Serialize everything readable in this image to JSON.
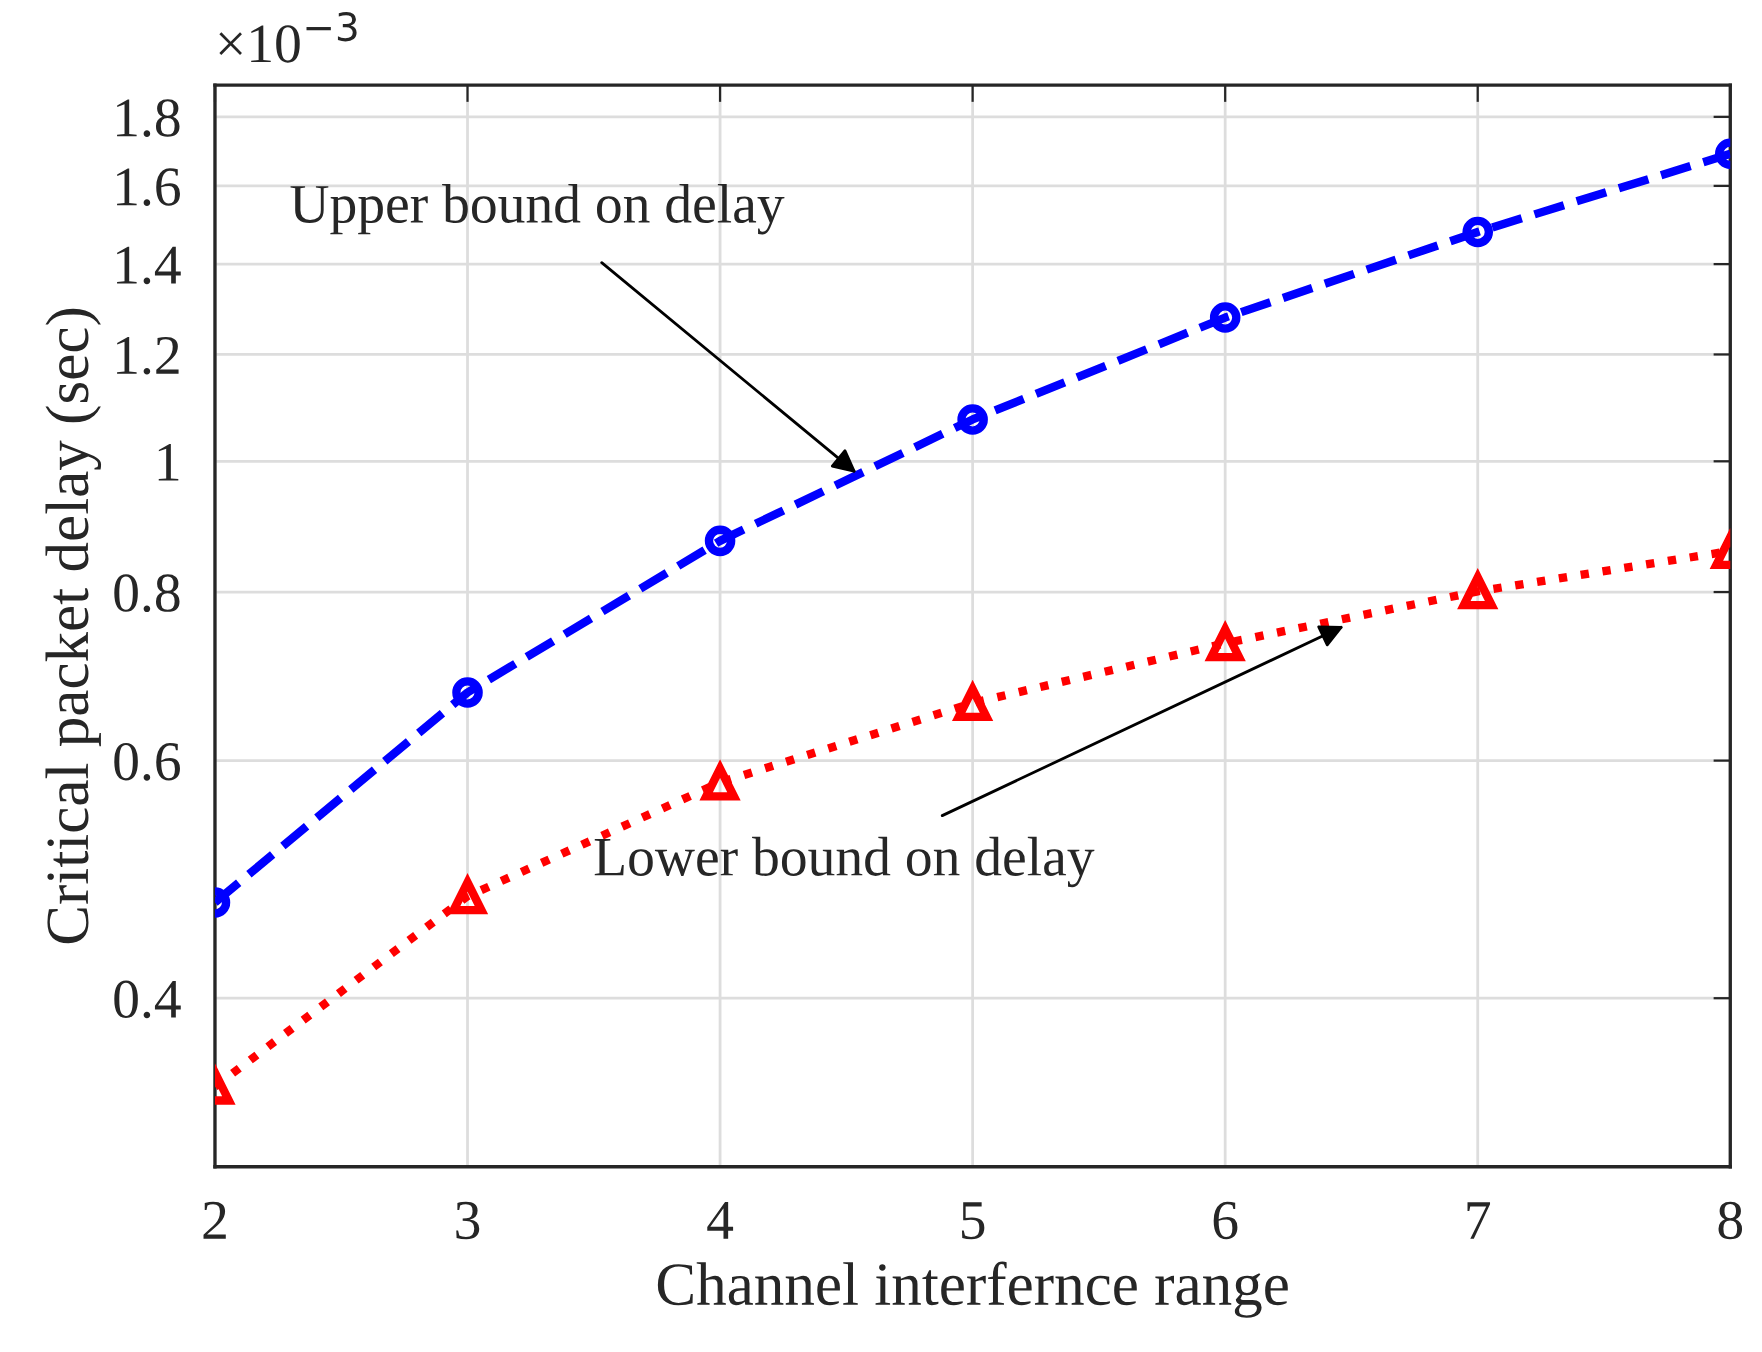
{
  "chart_data": {
    "type": "line",
    "xlabel": "Channel interfernce range",
    "ylabel": "Critical packet delay (sec)",
    "x": [
      2,
      3,
      4,
      5,
      6,
      7,
      8
    ],
    "series": [
      {
        "color": "#0000ff",
        "line_style": "dashed",
        "marker": "circle",
        "values": [
          0.471,
          0.674,
          0.873,
          1.074,
          1.278,
          1.479,
          1.69
        ]
      },
      {
        "color": "#ff0000",
        "line_style": "dotted",
        "marker": "triangle",
        "values": [
          0.344,
          0.476,
          0.578,
          0.662,
          0.733,
          0.801,
          0.858
        ]
      }
    ],
    "annotations": [
      {
        "text": "Upper bound on delay",
        "x": 4.54,
        "y": 0.98
      },
      {
        "text": "Lower bound on delay",
        "x": 6.47,
        "y": 0.755
      },
      "×10$^{−3}$"
    ],
    "log": "y",
    "xlim": [
      2,
      8
    ],
    "ylim": [
      0.3,
      1.9
    ],
    "xticks": [
      2,
      3,
      4,
      5,
      6,
      7,
      8
    ],
    "yticks": [
      0.4,
      0.6,
      0.8,
      1,
      1.2,
      1.4,
      1.6,
      1.8
    ],
    "grid": true
  }
}
